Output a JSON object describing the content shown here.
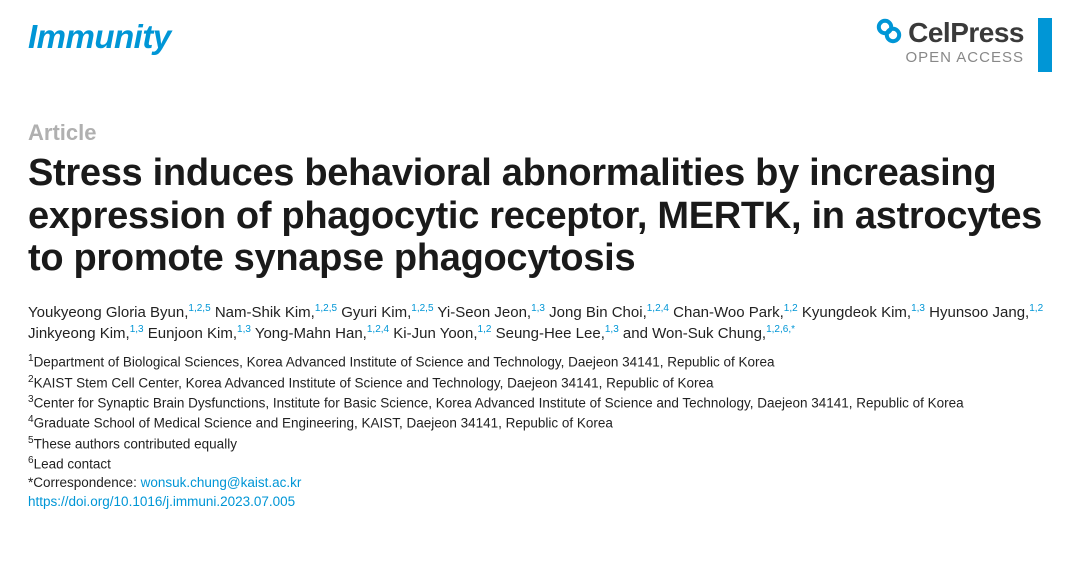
{
  "journal": "Immunity",
  "publisher": {
    "name_prefix": "Cel",
    "name_bold": "Press",
    "open_access": "OPEN ACCESS",
    "logo_color": "#0096d6",
    "accent_color": "#0096d6"
  },
  "article_type": "Article",
  "title": "Stress induces behavioral abnormalities by increasing expression of phagocytic receptor, MERTK, in astrocytes to promote synapse phagocytosis",
  "authors": [
    {
      "name": "Youkyeong Gloria Byun",
      "affs": "1,2,5"
    },
    {
      "name": "Nam-Shik Kim",
      "affs": "1,2,5"
    },
    {
      "name": "Gyuri Kim",
      "affs": "1,2,5"
    },
    {
      "name": "Yi-Seon Jeon",
      "affs": "1,3"
    },
    {
      "name": "Jong Bin Choi",
      "affs": "1,2,4"
    },
    {
      "name": "Chan-Woo Park",
      "affs": "1,2"
    },
    {
      "name": "Kyungdeok Kim",
      "affs": "1,3"
    },
    {
      "name": "Hyunsoo Jang",
      "affs": "1,2"
    },
    {
      "name": "Jinkyeong Kim",
      "affs": "1,3"
    },
    {
      "name": "Eunjoon Kim",
      "affs": "1,3"
    },
    {
      "name": "Yong-Mahn Han",
      "affs": "1,2,4"
    },
    {
      "name": "Ki-Jun Yoon",
      "affs": "1,2"
    },
    {
      "name": "Seung-Hee Lee",
      "affs": "1,3"
    },
    {
      "name": "Won-Suk Chung",
      "affs": "1,2,6,*"
    }
  ],
  "affiliations": [
    {
      "num": "1",
      "text": "Department of Biological Sciences, Korea Advanced Institute of Science and Technology, Daejeon 34141, Republic of Korea"
    },
    {
      "num": "2",
      "text": "KAIST Stem Cell Center, Korea Advanced Institute of Science and Technology, Daejeon 34141, Republic of Korea"
    },
    {
      "num": "3",
      "text": "Center for Synaptic Brain Dysfunctions, Institute for Basic Science, Korea Advanced Institute of Science and Technology, Daejeon 34141, Republic of Korea"
    },
    {
      "num": "4",
      "text": "Graduate School of Medical Science and Engineering, KAIST, Daejeon 34141, Republic of Korea"
    },
    {
      "num": "5",
      "text": "These authors contributed equally"
    },
    {
      "num": "6",
      "text": "Lead contact"
    }
  ],
  "correspondence_label": "*Correspondence: ",
  "correspondence_email": "wonsuk.chung@kaist.ac.kr",
  "doi": "https://doi.org/10.1016/j.immuni.2023.07.005",
  "colors": {
    "brand_blue": "#0096d6",
    "text_dark": "#1a1a1a",
    "text_grey": "#b0b0b0",
    "pub_grey": "#888888"
  }
}
